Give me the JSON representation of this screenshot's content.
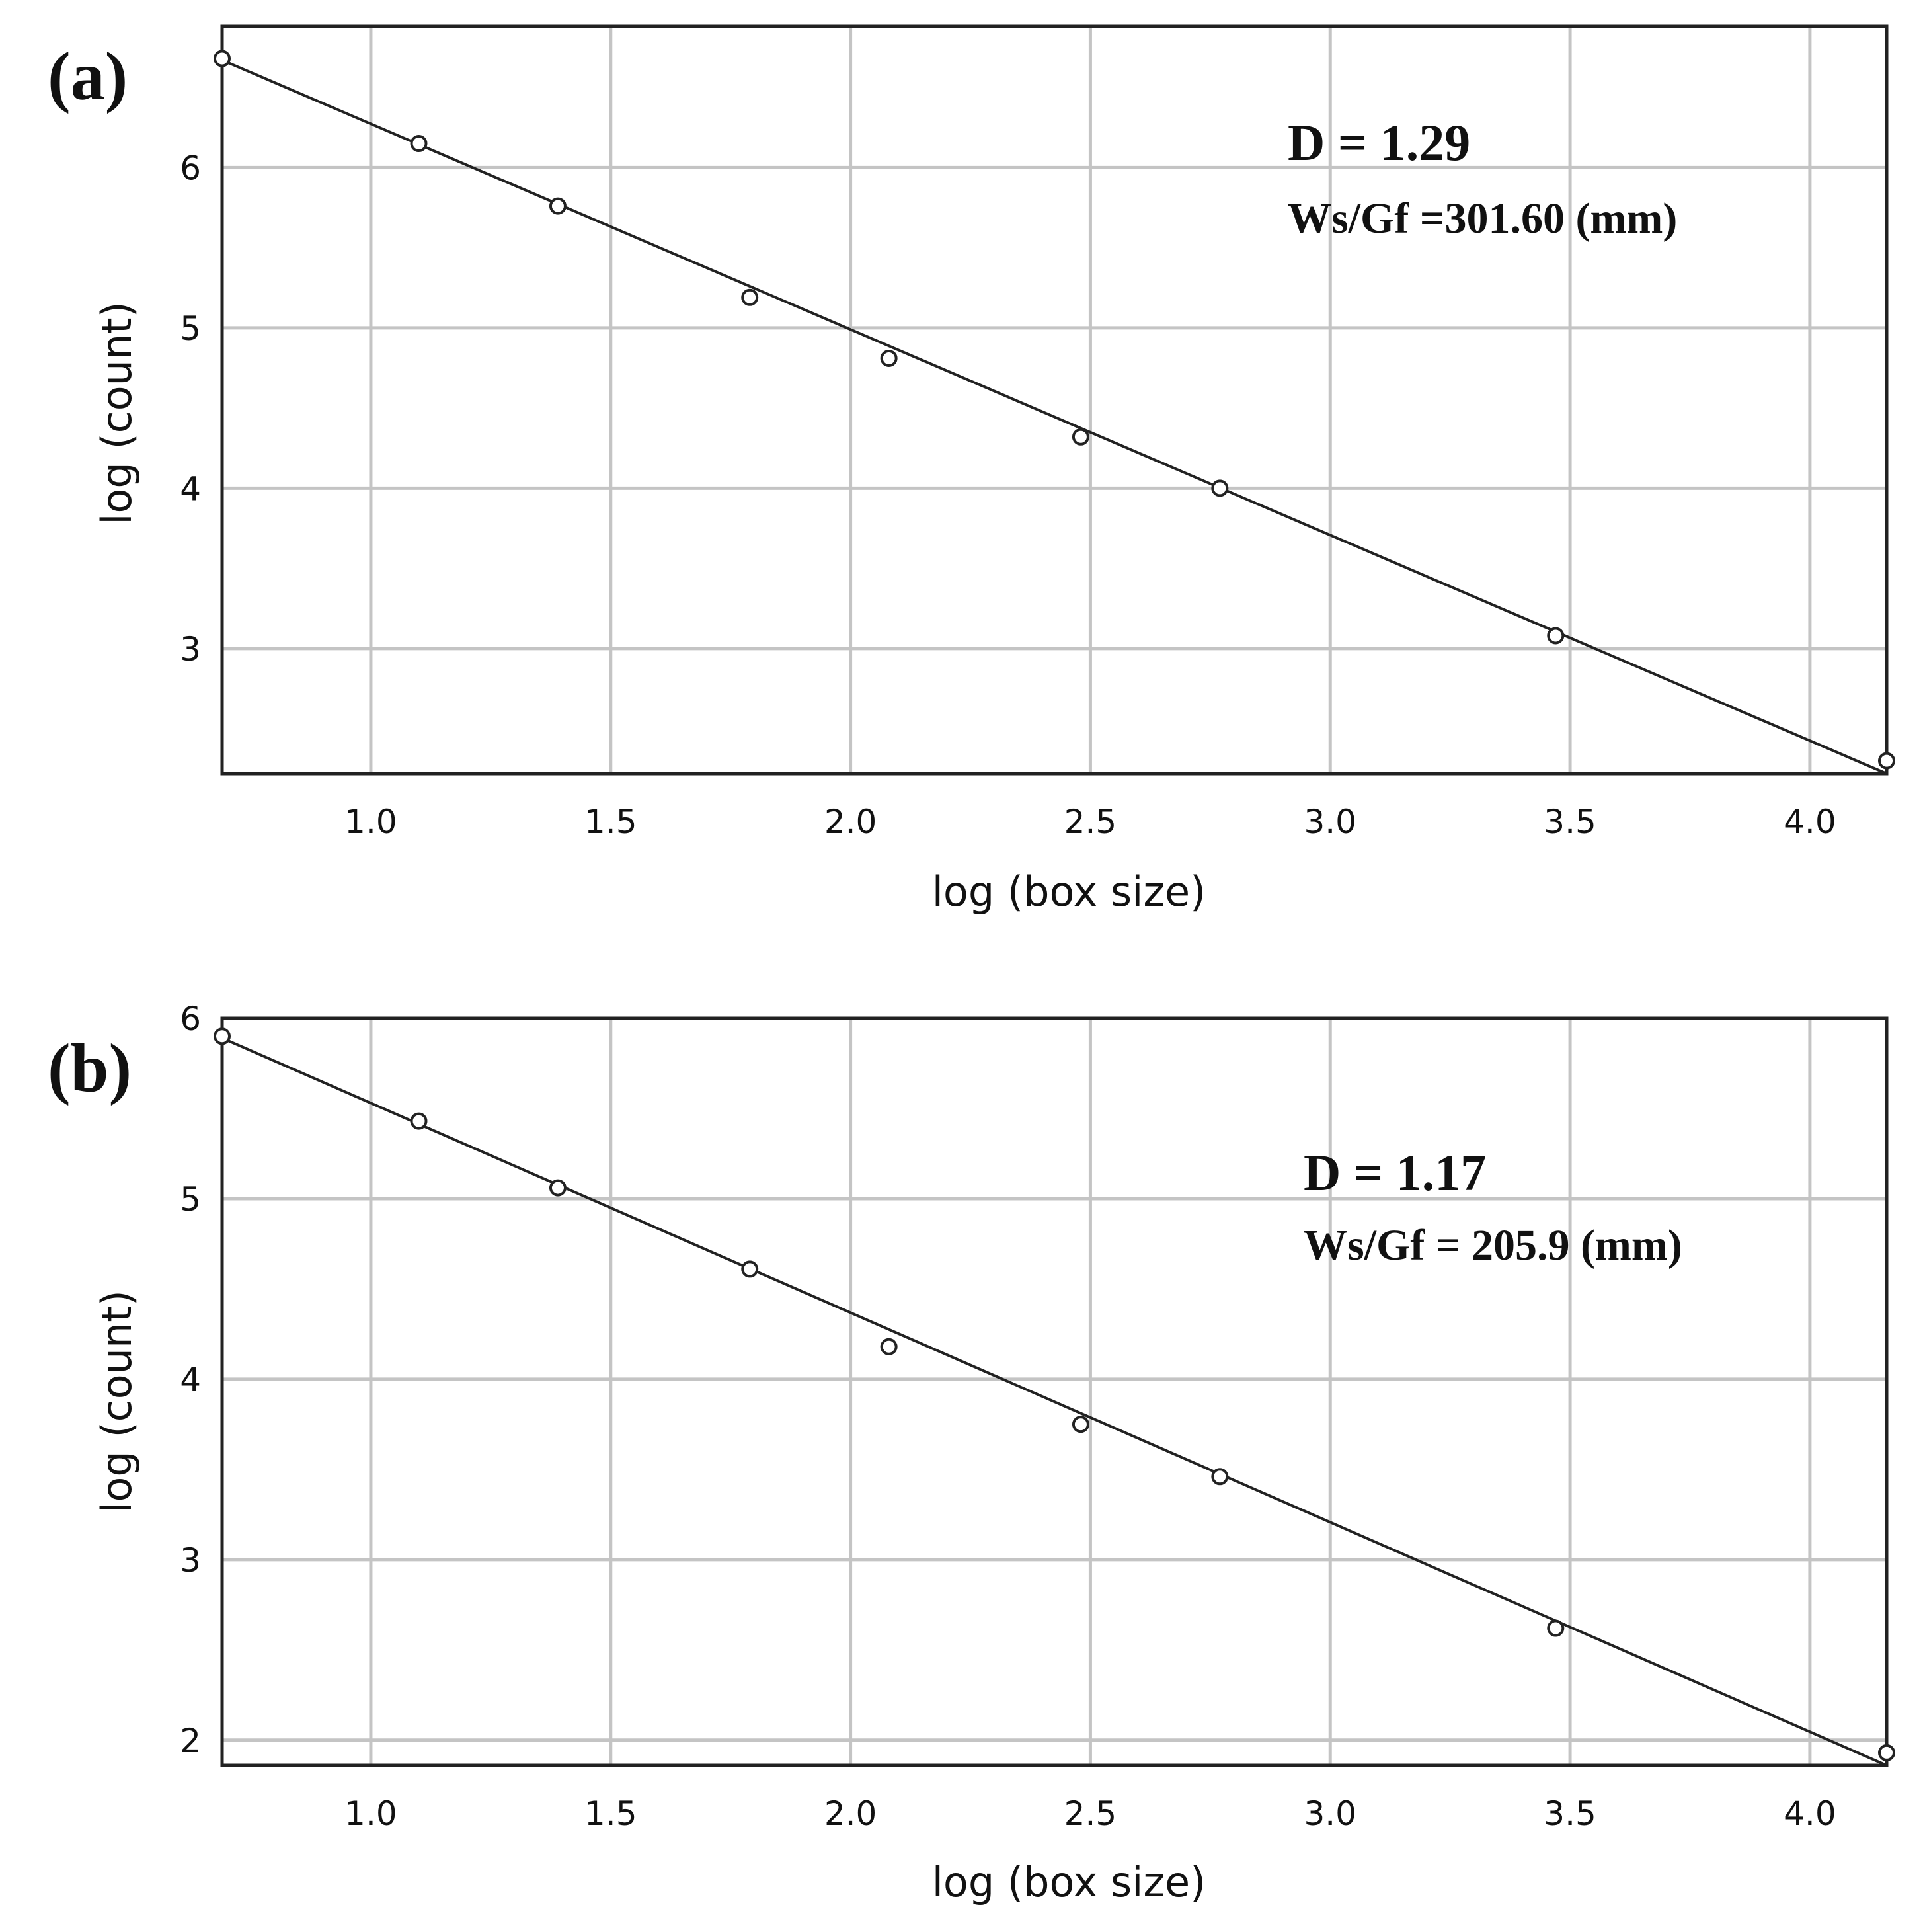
{
  "chart_data": [
    {
      "type": "scatter",
      "panel_label": "(a)",
      "xlabel": "log (box size)",
      "ylabel": "log (count)",
      "xlim": [
        0.69,
        4.16
      ],
      "ylim": [
        2.22,
        6.88
      ],
      "xticks": [
        1.0,
        1.5,
        2.0,
        2.5,
        3.0,
        3.5,
        4.0
      ],
      "xtick_labels": [
        "1.0",
        "1.5",
        "2.0",
        "2.5",
        "3.0",
        "3.5",
        "4.0"
      ],
      "yticks": [
        3,
        4,
        5,
        6
      ],
      "ytick_labels": [
        "3",
        "4",
        "5",
        "6"
      ],
      "grid": true,
      "series": [
        {
          "name": "data",
          "x": [
            0.69,
            1.1,
            1.39,
            1.79,
            2.08,
            2.48,
            2.77,
            3.47,
            4.16
          ],
          "y": [
            6.68,
            6.15,
            5.76,
            5.19,
            4.81,
            4.32,
            4.0,
            3.08,
            2.3
          ]
        }
      ],
      "fit": {
        "x": [
          0.69,
          4.16
        ],
        "y": [
          6.67,
          2.22
        ]
      },
      "annotations": {
        "d": "D = 1.29",
        "ws": "Ws/Gf =301.60 (mm)"
      }
    },
    {
      "type": "scatter",
      "panel_label": "(b)",
      "xlabel": "log (box size)",
      "ylabel": "log (count)",
      "xlim": [
        0.69,
        4.16
      ],
      "ylim": [
        1.86,
        6.0
      ],
      "xticks": [
        1.0,
        1.5,
        2.0,
        2.5,
        3.0,
        3.5,
        4.0
      ],
      "xtick_labels": [
        "1.0",
        "1.5",
        "2.0",
        "2.5",
        "3.0",
        "3.5",
        "4.0"
      ],
      "yticks": [
        2,
        3,
        4,
        5,
        6
      ],
      "ytick_labels": [
        "2",
        "3",
        "4",
        "5",
        "6"
      ],
      "grid": true,
      "series": [
        {
          "name": "data",
          "x": [
            0.69,
            1.1,
            1.39,
            1.79,
            2.08,
            2.48,
            2.77,
            3.47,
            4.16
          ],
          "y": [
            5.9,
            5.43,
            5.06,
            4.61,
            4.18,
            3.75,
            3.46,
            2.62,
            1.93
          ]
        }
      ],
      "fit": {
        "x": [
          0.69,
          4.16
        ],
        "y": [
          5.89,
          1.86
        ]
      },
      "annotations": {
        "d": "D = 1.17",
        "ws": "Ws/Gf = 205.9 (mm)"
      }
    }
  ]
}
